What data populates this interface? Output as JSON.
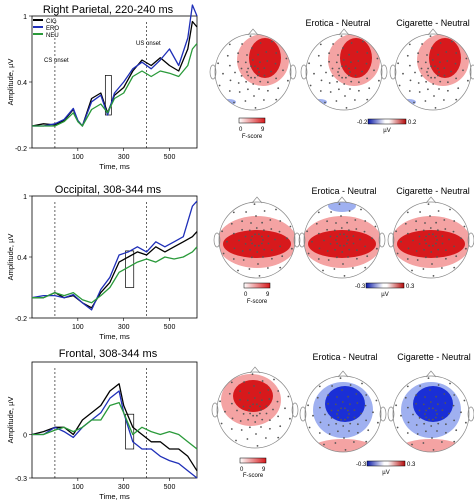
{
  "chart_data": [
    {
      "type": "line",
      "title": "Right Parietal, 220-240 ms",
      "xlabel": "Time, ms",
      "ylabel": "Amplitude, µV",
      "xlim": [
        -100,
        620
      ],
      "ylim": [
        -0.2,
        1.0
      ],
      "yticks": [
        -0.2,
        0.4,
        1.0
      ],
      "xticks": [
        100,
        300,
        500
      ],
      "annotations": [
        {
          "text": "CS onset",
          "x": 0
        },
        {
          "text": "US onset",
          "x": 400
        }
      ],
      "window": [
        220,
        240
      ],
      "legend": [
        "CIG",
        "ERO",
        "NEU"
      ],
      "series": [
        {
          "name": "CIG",
          "color": "#000000",
          "x": [
            -100,
            -50,
            0,
            40,
            80,
            100,
            120,
            160,
            200,
            230,
            260,
            300,
            340,
            380,
            420,
            460,
            500,
            540,
            580,
            600,
            620
          ],
          "y": [
            0.0,
            0.02,
            0.01,
            0.05,
            0.15,
            0.05,
            0.0,
            0.25,
            0.3,
            0.12,
            0.28,
            0.35,
            0.5,
            0.6,
            0.55,
            0.62,
            0.55,
            0.5,
            0.7,
            0.95,
            0.9
          ]
        },
        {
          "name": "ERO",
          "color": "#1f2fb8",
          "x": [
            -100,
            -50,
            0,
            40,
            80,
            100,
            120,
            160,
            200,
            230,
            260,
            300,
            340,
            380,
            420,
            460,
            500,
            540,
            580,
            600,
            620
          ],
          "y": [
            0.0,
            0.0,
            0.02,
            0.06,
            0.16,
            0.05,
            0.0,
            0.22,
            0.28,
            0.1,
            0.3,
            0.4,
            0.52,
            0.58,
            0.52,
            0.6,
            0.7,
            0.55,
            0.8,
            1.1,
            1.0
          ]
        },
        {
          "name": "NEU",
          "color": "#2a9a3a",
          "x": [
            -100,
            -50,
            0,
            40,
            80,
            100,
            120,
            160,
            200,
            230,
            260,
            300,
            340,
            380,
            420,
            460,
            500,
            540,
            580,
            600,
            620
          ],
          "y": [
            0.0,
            0.0,
            0.0,
            0.04,
            0.12,
            0.04,
            0.0,
            0.15,
            0.2,
            0.12,
            0.25,
            0.3,
            0.45,
            0.5,
            0.45,
            0.5,
            0.48,
            0.45,
            0.55,
            0.7,
            0.75
          ]
        }
      ]
    },
    {
      "type": "line",
      "title": "Occipital, 308-344 ms",
      "xlabel": "Time, ms",
      "ylabel": "Amplitude, µV",
      "xlim": [
        -100,
        620
      ],
      "ylim": [
        -0.2,
        1.0
      ],
      "yticks": [
        -0.2,
        0.4,
        1.0
      ],
      "xticks": [
        100,
        300,
        500
      ],
      "window": [
        308,
        344
      ],
      "series": [
        {
          "name": "CIG",
          "color": "#000000",
          "x": [
            -100,
            -50,
            0,
            40,
            80,
            120,
            160,
            200,
            240,
            280,
            320,
            360,
            400,
            440,
            480,
            520,
            560,
            600,
            620
          ],
          "y": [
            0.0,
            0.0,
            0.05,
            0.0,
            0.02,
            -0.05,
            -0.1,
            0.05,
            0.15,
            0.35,
            0.4,
            0.45,
            0.42,
            0.5,
            0.45,
            0.5,
            0.55,
            0.6,
            0.65
          ]
        },
        {
          "name": "ERO",
          "color": "#1f2fb8",
          "x": [
            -100,
            -50,
            0,
            40,
            80,
            120,
            160,
            200,
            240,
            280,
            320,
            360,
            400,
            440,
            480,
            520,
            560,
            600,
            620
          ],
          "y": [
            0.0,
            0.02,
            0.02,
            0.0,
            0.03,
            -0.05,
            -0.12,
            0.08,
            0.2,
            0.42,
            0.45,
            0.5,
            0.45,
            0.55,
            0.5,
            0.55,
            0.6,
            0.9,
            0.95
          ]
        },
        {
          "name": "NEU",
          "color": "#2a9a3a",
          "x": [
            -100,
            -50,
            0,
            40,
            80,
            120,
            160,
            200,
            240,
            280,
            320,
            360,
            400,
            440,
            480,
            520,
            560,
            600,
            620
          ],
          "y": [
            0.0,
            0.0,
            0.05,
            0.02,
            0.05,
            -0.02,
            -0.05,
            0.02,
            0.1,
            0.25,
            0.3,
            0.35,
            0.38,
            0.35,
            0.4,
            0.38,
            0.4,
            0.45,
            0.5
          ]
        }
      ]
    },
    {
      "type": "line",
      "title": "Frontal, 308-344 ms",
      "xlabel": "Time, ms",
      "ylabel": "Amplitude, µV",
      "xlim": [
        -100,
        620
      ],
      "ylim": [
        -0.3,
        0.5
      ],
      "yticks": [
        0,
        -0.3
      ],
      "xticks": [
        100,
        300,
        500
      ],
      "window": [
        308,
        344
      ],
      "series": [
        {
          "name": "CIG",
          "color": "#000000",
          "x": [
            -100,
            -50,
            0,
            40,
            80,
            120,
            160,
            200,
            240,
            280,
            300,
            340,
            380,
            420,
            460,
            500,
            540,
            580,
            620
          ],
          "y": [
            0.0,
            0.02,
            0.05,
            0.05,
            0.0,
            0.1,
            0.15,
            0.2,
            0.3,
            0.35,
            0.2,
            0.05,
            0.0,
            -0.05,
            -0.05,
            -0.1,
            -0.1,
            -0.15,
            -0.25
          ]
        },
        {
          "name": "ERO",
          "color": "#1f2fb8",
          "x": [
            -100,
            -50,
            0,
            40,
            80,
            120,
            160,
            200,
            240,
            280,
            300,
            340,
            380,
            420,
            460,
            500,
            540,
            580,
            620
          ],
          "y": [
            0.0,
            0.0,
            0.05,
            0.02,
            -0.02,
            0.05,
            0.1,
            0.15,
            0.25,
            0.3,
            0.15,
            -0.05,
            -0.1,
            -0.1,
            -0.15,
            -0.18,
            -0.2,
            -0.25,
            -0.3
          ]
        },
        {
          "name": "NEU",
          "color": "#2a9a3a",
          "x": [
            -100,
            -50,
            0,
            40,
            80,
            120,
            160,
            200,
            240,
            280,
            300,
            340,
            380,
            420,
            460,
            500,
            540,
            580,
            620
          ],
          "y": [
            0.0,
            0.0,
            0.03,
            0.05,
            0.02,
            0.05,
            0.1,
            0.1,
            0.2,
            0.22,
            0.15,
            0.0,
            0.05,
            0.02,
            0.0,
            0.02,
            0.0,
            -0.05,
            -0.1
          ]
        }
      ]
    }
  ],
  "topo_rows": [
    {
      "titles": [
        "",
        "Erotica - Neutral",
        "Cigarette - Neutral"
      ],
      "fscale": {
        "min": "0",
        "max": "9",
        "label": "F-score"
      },
      "uvscale": {
        "min": "-0.2",
        "max": "0.2",
        "label": "µV"
      }
    },
    {
      "titles": [
        "",
        "Erotica - Neutral",
        "Cigarette - Neutral"
      ],
      "fscale": {
        "min": "0",
        "max": "9",
        "label": "F-score"
      },
      "uvscale": {
        "min": "-0.3",
        "max": "0.3",
        "label": "µV"
      }
    },
    {
      "titles": [
        "",
        "Erotica - Neutral",
        "Cigarette - Neutral"
      ],
      "fscale": {
        "min": "0",
        "max": "9",
        "label": "F-score"
      },
      "uvscale": {
        "min": "-0.3",
        "max": "0.3",
        "label": "µV"
      }
    }
  ],
  "colors": {
    "red": "#d7191c",
    "pink": "#f4a3a3",
    "blue": "#1a2fd6",
    "lightblue": "#9fb0f0"
  }
}
